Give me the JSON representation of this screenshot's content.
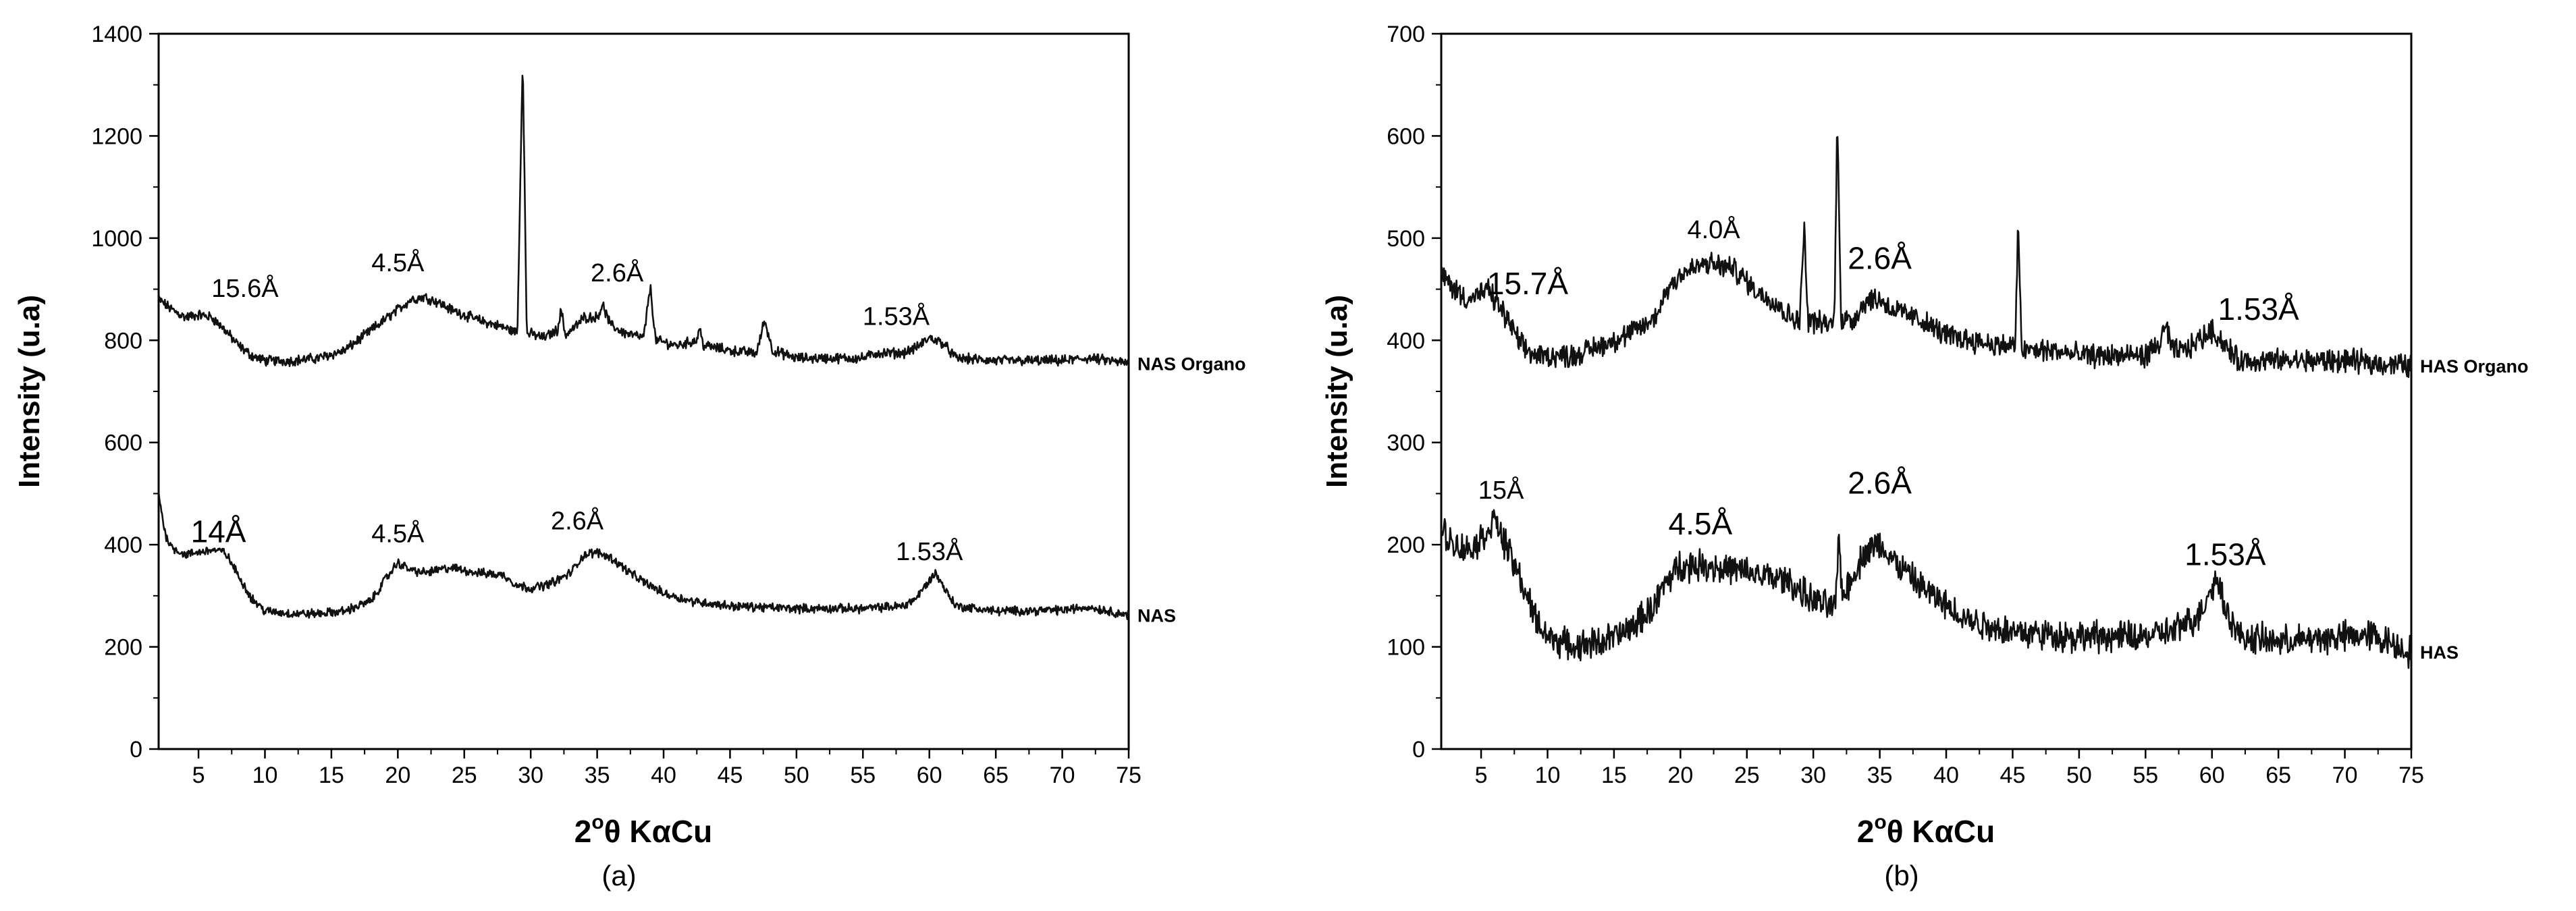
{
  "chart_data": [
    {
      "type": "line",
      "panel_caption": "(a)",
      "xlabel_main": "2",
      "xlabel_sup": "o",
      "xlabel_rest": "θ KαCu",
      "ylabel": "Intensity (u.a)",
      "xlim": [
        2,
        75
      ],
      "ylim": [
        0,
        1400
      ],
      "xticks": [
        5,
        10,
        15,
        20,
        25,
        30,
        35,
        40,
        45,
        50,
        55,
        60,
        65,
        70,
        75
      ],
      "yticks": [
        0,
        200,
        400,
        600,
        800,
        1000,
        1200,
        1400
      ],
      "series": [
        {
          "name": "NAS Organo",
          "baseline": 760,
          "noise": 8,
          "points": [
            [
              2,
              880
            ],
            [
              3,
              860
            ],
            [
              4,
              845
            ],
            [
              5,
              850
            ],
            [
              6,
              845
            ],
            [
              7,
              820
            ],
            [
              8,
              790
            ],
            [
              9,
              770
            ],
            [
              10,
              760
            ],
            [
              12,
              760
            ],
            [
              14,
              765
            ],
            [
              16,
              780
            ],
            [
              18,
              820
            ],
            [
              20,
              860
            ],
            [
              21,
              880
            ],
            [
              22,
              885
            ],
            [
              23,
              875
            ],
            [
              24,
              860
            ],
            [
              26,
              840
            ],
            [
              28,
              825
            ],
            [
              29,
              815
            ],
            [
              29.4,
              1360
            ],
            [
              29.7,
              815
            ],
            [
              31,
              805
            ],
            [
              32,
              820
            ],
            [
              32.3,
              860
            ],
            [
              32.6,
              810
            ],
            [
              33.5,
              830
            ],
            [
              34,
              845
            ],
            [
              35,
              845
            ],
            [
              35.4,
              870
            ],
            [
              36,
              830
            ],
            [
              37,
              815
            ],
            [
              38.5,
              805
            ],
            [
              39,
              905
            ],
            [
              39.4,
              800
            ],
            [
              41,
              790
            ],
            [
              42.5,
              800
            ],
            [
              42.7,
              825
            ],
            [
              43,
              790
            ],
            [
              45,
              780
            ],
            [
              47,
              775
            ],
            [
              47.6,
              840
            ],
            [
              48.2,
              780
            ],
            [
              50,
              765
            ],
            [
              55,
              765
            ],
            [
              56,
              775
            ],
            [
              58,
              775
            ],
            [
              59,
              785
            ],
            [
              60,
              805
            ],
            [
              61,
              795
            ],
            [
              62,
              765
            ],
            [
              65,
              760
            ],
            [
              70,
              760
            ],
            [
              72,
              765
            ],
            [
              75,
              755
            ]
          ]
        },
        {
          "name": "NAS",
          "baseline": 265,
          "noise": 7,
          "points": [
            [
              2,
              500
            ],
            [
              2.5,
              420
            ],
            [
              3,
              395
            ],
            [
              4,
              380
            ],
            [
              5,
              385
            ],
            [
              6,
              390
            ],
            [
              7,
              385
            ],
            [
              8,
              340
            ],
            [
              9,
              295
            ],
            [
              10,
              270
            ],
            [
              12,
              265
            ],
            [
              14,
              265
            ],
            [
              16,
              270
            ],
            [
              18,
              290
            ],
            [
              19,
              330
            ],
            [
              20,
              365
            ],
            [
              21,
              350
            ],
            [
              22,
              345
            ],
            [
              24,
              355
            ],
            [
              26,
              345
            ],
            [
              28,
              340
            ],
            [
              29,
              320
            ],
            [
              30,
              315
            ],
            [
              31,
              320
            ],
            [
              32,
              330
            ],
            [
              33,
              345
            ],
            [
              34,
              380
            ],
            [
              35,
              385
            ],
            [
              36,
              375
            ],
            [
              38,
              335
            ],
            [
              40,
              305
            ],
            [
              42,
              290
            ],
            [
              45,
              280
            ],
            [
              50,
              275
            ],
            [
              55,
              275
            ],
            [
              58,
              280
            ],
            [
              59,
              295
            ],
            [
              60,
              330
            ],
            [
              60.5,
              345
            ],
            [
              61,
              320
            ],
            [
              62,
              280
            ],
            [
              65,
              270
            ],
            [
              70,
              272
            ],
            [
              72,
              278
            ],
            [
              75,
              262
            ]
          ]
        }
      ],
      "annotations": [
        {
          "text": "15.6Å",
          "x": 8.5,
          "y": 885,
          "size": "normal"
        },
        {
          "text": "4.5Å",
          "x": 20,
          "y": 935,
          "size": "normal"
        },
        {
          "text": "2.6Å",
          "x": 36.5,
          "y": 915,
          "size": "normal"
        },
        {
          "text": "1.53Å",
          "x": 57.5,
          "y": 830,
          "size": "normal"
        },
        {
          "text": "14Å",
          "x": 6.5,
          "y": 405,
          "size": "big"
        },
        {
          "text": "4.5Å",
          "x": 20,
          "y": 405,
          "size": "normal"
        },
        {
          "text": "2.6Å",
          "x": 33.5,
          "y": 430,
          "size": "normal"
        },
        {
          "text": "1.53Å",
          "x": 60,
          "y": 370,
          "size": "normal"
        }
      ]
    },
    {
      "type": "line",
      "panel_caption": "(b)",
      "xlabel_main": "2",
      "xlabel_sup": "o",
      "xlabel_rest": "θ KαCu",
      "ylabel": "Intensity (u.a)",
      "xlim": [
        2,
        75
      ],
      "ylim": [
        0,
        700
      ],
      "xticks": [
        5,
        10,
        15,
        20,
        25,
        30,
        35,
        40,
        45,
        50,
        55,
        60,
        65,
        70,
        75
      ],
      "yticks": [
        0,
        100,
        200,
        300,
        400,
        500,
        600,
        700
      ],
      "series": [
        {
          "name": "HAS Organo",
          "baseline": 380,
          "noise": 9,
          "points": [
            [
              2,
              465
            ],
            [
              3,
              450
            ],
            [
              4,
              440
            ],
            [
              5,
              445
            ],
            [
              5.5,
              450
            ],
            [
              6,
              440
            ],
            [
              7,
              420
            ],
            [
              8,
              395
            ],
            [
              9,
              385
            ],
            [
              10,
              385
            ],
            [
              12,
              385
            ],
            [
              14,
              395
            ],
            [
              16,
              405
            ],
            [
              18,
              420
            ],
            [
              19,
              450
            ],
            [
              20,
              465
            ],
            [
              22,
              475
            ],
            [
              24,
              470
            ],
            [
              26,
              445
            ],
            [
              27,
              440
            ],
            [
              28,
              425
            ],
            [
              29,
              420
            ],
            [
              29.3,
              515
            ],
            [
              29.6,
              420
            ],
            [
              31,
              415
            ],
            [
              31.6,
              420
            ],
            [
              31.8,
              625
            ],
            [
              32.1,
              420
            ],
            [
              33,
              420
            ],
            [
              34,
              440
            ],
            [
              35,
              440
            ],
            [
              36,
              430
            ],
            [
              38,
              420
            ],
            [
              40,
              405
            ],
            [
              42,
              400
            ],
            [
              44,
              395
            ],
            [
              45.2,
              395
            ],
            [
              45.4,
              510
            ],
            [
              45.7,
              390
            ],
            [
              48,
              390
            ],
            [
              50,
              385
            ],
            [
              55,
              385
            ],
            [
              56,
              395
            ],
            [
              56.5,
              415
            ],
            [
              57,
              390
            ],
            [
              58,
              390
            ],
            [
              59,
              400
            ],
            [
              60,
              410
            ],
            [
              61,
              395
            ],
            [
              62,
              380
            ],
            [
              65,
              380
            ],
            [
              70,
              380
            ],
            [
              75,
              375
            ]
          ]
        },
        {
          "name": "HAS",
          "baseline": 100,
          "noise": 12,
          "points": [
            [
              2,
              215
            ],
            [
              3,
              200
            ],
            [
              4,
              195
            ],
            [
              5,
              205
            ],
            [
              6,
              225
            ],
            [
              6.5,
              210
            ],
            [
              7,
              195
            ],
            [
              8,
              165
            ],
            [
              9,
              130
            ],
            [
              10,
              110
            ],
            [
              12,
              100
            ],
            [
              14,
              105
            ],
            [
              16,
              115
            ],
            [
              18,
              140
            ],
            [
              19,
              165
            ],
            [
              20,
              180
            ],
            [
              22,
              180
            ],
            [
              24,
              175
            ],
            [
              26,
              170
            ],
            [
              28,
              165
            ],
            [
              29,
              155
            ],
            [
              30,
              145
            ],
            [
              31,
              140
            ],
            [
              31.7,
              140
            ],
            [
              31.9,
              210
            ],
            [
              32.2,
              150
            ],
            [
              33,
              170
            ],
            [
              34,
              195
            ],
            [
              35,
              200
            ],
            [
              36,
              185
            ],
            [
              38,
              160
            ],
            [
              40,
              140
            ],
            [
              42,
              125
            ],
            [
              45,
              115
            ],
            [
              50,
              110
            ],
            [
              55,
              110
            ],
            [
              57,
              115
            ],
            [
              59,
              130
            ],
            [
              60,
              160
            ],
            [
              60.5,
              165
            ],
            [
              61,
              140
            ],
            [
              62,
              110
            ],
            [
              65,
              105
            ],
            [
              70,
              110
            ],
            [
              72,
              112
            ],
            [
              75,
              95
            ]
          ]
        }
      ],
      "annotations": [
        {
          "text": "15.7Å",
          "x": 8.5,
          "y": 445,
          "size": "big"
        },
        {
          "text": "4.0Å",
          "x": 22.5,
          "y": 500,
          "size": "normal"
        },
        {
          "text": "2.6Å",
          "x": 35,
          "y": 470,
          "size": "big"
        },
        {
          "text": "1.53Å",
          "x": 63.5,
          "y": 420,
          "size": "big"
        },
        {
          "text": "15Å",
          "x": 6.5,
          "y": 245,
          "size": "normal"
        },
        {
          "text": "4.5Å",
          "x": 21.5,
          "y": 210,
          "size": "big"
        },
        {
          "text": "2.6Å",
          "x": 35,
          "y": 250,
          "size": "big"
        },
        {
          "text": "1.53Å",
          "x": 61,
          "y": 180,
          "size": "big"
        }
      ]
    }
  ]
}
